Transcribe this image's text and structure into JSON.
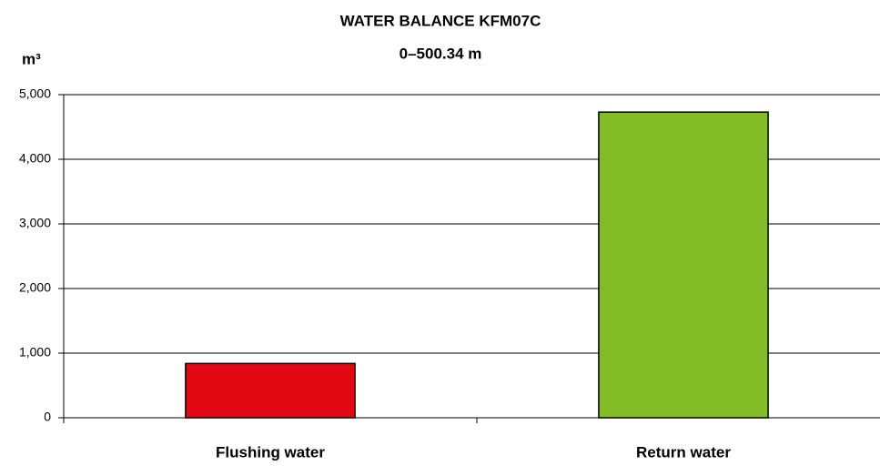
{
  "chart_data": {
    "type": "bar",
    "title": "WATER BALANCE KFM07C",
    "subtitle": "0–500.34 m",
    "y_label": "m³",
    "categories": [
      "Flushing water",
      "Return water"
    ],
    "values": [
      840,
      4730
    ],
    "colors": [
      "#e30613",
      "#84bc28"
    ],
    "ylim": [
      0,
      5000
    ],
    "yticks": [
      0,
      {
        "value": 1000,
        "label": "1,000"
      },
      {
        "value": 2000,
        "label": "2,000"
      },
      {
        "value": 3000,
        "label": "3,000"
      },
      {
        "value": 4000,
        "label": "4,000"
      },
      {
        "value": 5000,
        "label": "5,000"
      }
    ],
    "grid": true
  }
}
